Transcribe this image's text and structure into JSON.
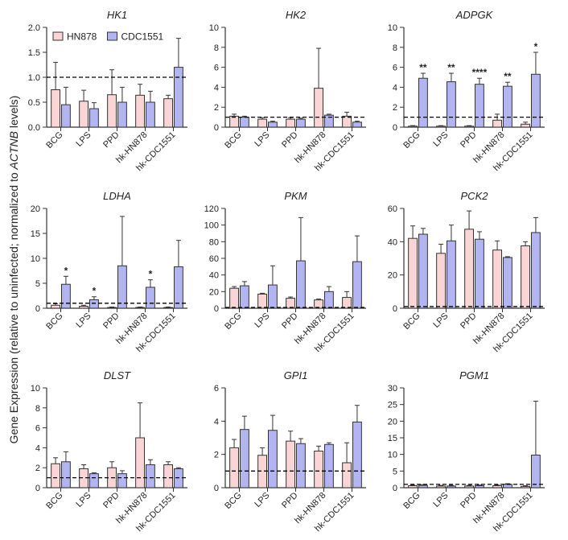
{
  "y_axis_label": "Gene Expression (relative to uninfected; normalized to ACTNB levels)",
  "y_axis_label_prefix": "Gene Expression (relative to uninfected; normalized to ",
  "y_axis_label_italic": "ACTNB",
  "y_axis_label_suffix": " levels)",
  "colors": {
    "HN878": "#f9d5d5",
    "CDC1551": "#b3b5f2",
    "edge": "#333333"
  },
  "chart_data": [
    {
      "type": "bar",
      "title": "HK1",
      "categories": [
        "BCG",
        "LPS",
        "PPD",
        "hk-HN878",
        "hk-CDC1551"
      ],
      "ylim": [
        0,
        2.0
      ],
      "yticks": [
        "0.0",
        "0.5",
        "1.0",
        "1.5",
        "2.0"
      ],
      "reference_line": 1,
      "legend": [
        "HN878",
        "CDC1551"
      ],
      "series": [
        {
          "name": "HN878",
          "values": [
            0.75,
            0.52,
            0.65,
            0.64,
            0.57
          ],
          "errors": [
            0.55,
            0.22,
            0.5,
            0.22,
            0.07
          ]
        },
        {
          "name": "CDC1551",
          "values": [
            0.45,
            0.37,
            0.5,
            0.5,
            1.2
          ],
          "errors": [
            0.35,
            0.12,
            0.3,
            0.22,
            0.58
          ]
        }
      ],
      "annotations": []
    },
    {
      "type": "bar",
      "title": "HK2",
      "categories": [
        "BCG",
        "LPS",
        "PPD",
        "hk-HN878",
        "hk-CDC1551"
      ],
      "ylim": [
        0,
        10
      ],
      "yticks": [
        "0",
        "2",
        "4",
        "6",
        "8",
        "10"
      ],
      "reference_line": 1,
      "series": [
        {
          "name": "HN878",
          "values": [
            1.1,
            0.8,
            0.8,
            3.9,
            1.1
          ],
          "errors": [
            0.2,
            0.15,
            0.15,
            4.0,
            0.4
          ]
        },
        {
          "name": "CDC1551",
          "values": [
            1.0,
            0.5,
            0.8,
            1.2,
            0.5
          ],
          "errors": [
            0.1,
            0.1,
            0.1,
            0.1,
            0.1
          ]
        }
      ],
      "annotations": []
    },
    {
      "type": "bar",
      "title": "ADPGK",
      "categories": [
        "BCG",
        "LPS",
        "PPD",
        "hk-HN878",
        "hk-CDC1551"
      ],
      "ylim": [
        0,
        10
      ],
      "yticks": [
        "0",
        "2",
        "4",
        "6",
        "8",
        "10"
      ],
      "reference_line": 1,
      "series": [
        {
          "name": "HN878",
          "values": [
            0.1,
            0.1,
            0.1,
            0.7,
            0.3
          ],
          "errors": [
            0.05,
            0.05,
            0.05,
            0.6,
            0.2
          ]
        },
        {
          "name": "CDC1551",
          "values": [
            4.9,
            4.55,
            4.3,
            4.1,
            5.3
          ],
          "errors": [
            0.5,
            0.85,
            0.6,
            0.4,
            2.2
          ]
        }
      ],
      "annotations": [
        {
          "category": "BCG",
          "series": "CDC1551",
          "label": "**"
        },
        {
          "category": "LPS",
          "series": "CDC1551",
          "label": "**"
        },
        {
          "category": "PPD",
          "series": "CDC1551",
          "label": "****"
        },
        {
          "category": "hk-HN878",
          "series": "CDC1551",
          "label": "**"
        },
        {
          "category": "hk-CDC1551",
          "series": "CDC1551",
          "label": "*"
        }
      ]
    },
    {
      "type": "bar",
      "title": "LDHA",
      "categories": [
        "BCG",
        "LPS",
        "PPD",
        "hk-HN878",
        "hk-CDC1551"
      ],
      "ylim": [
        0,
        20
      ],
      "yticks": [
        "0",
        "5",
        "10",
        "15",
        "20"
      ],
      "reference_line": 1,
      "series": [
        {
          "name": "HN878",
          "values": [
            0.6,
            0.4,
            0.15,
            0.15,
            0.15
          ],
          "errors": [
            0.3,
            0.2,
            0.1,
            0.1,
            0.1
          ]
        },
        {
          "name": "CDC1551",
          "values": [
            4.8,
            1.7,
            8.5,
            4.2,
            8.3
          ],
          "errors": [
            1.6,
            0.6,
            9.9,
            1.5,
            5.3
          ]
        }
      ],
      "annotations": [
        {
          "category": "BCG",
          "series": "CDC1551",
          "label": "*"
        },
        {
          "category": "LPS",
          "series": "CDC1551",
          "label": "*"
        },
        {
          "category": "hk-HN878",
          "series": "CDC1551",
          "label": "*"
        }
      ]
    },
    {
      "type": "bar",
      "title": "PKM",
      "categories": [
        "BCG",
        "LPS",
        "PPD",
        "hk-HN878",
        "hk-CDC1551"
      ],
      "ylim": [
        0,
        120
      ],
      "yticks": [
        "0",
        "20",
        "40",
        "60",
        "80",
        "100",
        "120"
      ],
      "reference_line": 1,
      "series": [
        {
          "name": "HN878",
          "values": [
            24,
            17,
            12,
            10,
            13
          ],
          "errors": [
            2,
            1,
            1.5,
            1,
            7
          ]
        },
        {
          "name": "CDC1551",
          "values": [
            27,
            28,
            57,
            20,
            56
          ],
          "errors": [
            5,
            23,
            52,
            6,
            31
          ]
        }
      ],
      "annotations": []
    },
    {
      "type": "bar",
      "title": "PCK2",
      "categories": [
        "BCG",
        "LPS",
        "PPD",
        "hk-HN878",
        "hk-CDC1551"
      ],
      "ylim": [
        0,
        60
      ],
      "yticks": [
        "0",
        "20",
        "40",
        "60"
      ],
      "reference_line": 1,
      "series": [
        {
          "name": "HN878",
          "values": [
            42,
            33,
            47.5,
            35,
            37.5
          ],
          "errors": [
            7.5,
            5.5,
            11,
            5.5,
            2.5
          ]
        },
        {
          "name": "CDC1551",
          "values": [
            44.5,
            40.5,
            41.5,
            30.5,
            45.5
          ],
          "errors": [
            3.5,
            9.5,
            4.5,
            0.5,
            9
          ]
        }
      ],
      "annotations": []
    },
    {
      "type": "bar",
      "title": "DLST",
      "categories": [
        "BCG",
        "LPS",
        "PPD",
        "hk-HN878",
        "hk-CDC1551"
      ],
      "ylim": [
        0,
        10
      ],
      "yticks": [
        "0",
        "2",
        "4",
        "6",
        "8",
        "10"
      ],
      "reference_line": 1,
      "series": [
        {
          "name": "HN878",
          "values": [
            2.4,
            1.9,
            2.0,
            5.0,
            2.3
          ],
          "errors": [
            0.6,
            0.4,
            0.6,
            3.5,
            0.3
          ]
        },
        {
          "name": "CDC1551",
          "values": [
            2.6,
            1.4,
            1.4,
            2.3,
            1.9
          ],
          "errors": [
            1.0,
            0.1,
            0.3,
            0.5,
            0.1
          ]
        }
      ],
      "annotations": []
    },
    {
      "type": "bar",
      "title": "GPI1",
      "categories": [
        "BCG",
        "LPS",
        "PPD",
        "hk-HN878",
        "hk-CDC1551"
      ],
      "ylim": [
        0,
        6
      ],
      "yticks": [
        "0",
        "2",
        "4",
        "6"
      ],
      "reference_line": 1,
      "series": [
        {
          "name": "HN878",
          "values": [
            2.4,
            1.95,
            2.8,
            2.2,
            1.5
          ],
          "errors": [
            0.5,
            0.45,
            0.6,
            0.3,
            1.2
          ]
        },
        {
          "name": "CDC1551",
          "values": [
            3.5,
            3.45,
            2.65,
            2.6,
            3.95
          ],
          "errors": [
            0.8,
            0.9,
            0.3,
            0.1,
            1.0
          ]
        }
      ],
      "annotations": []
    },
    {
      "type": "bar",
      "title": "PGM1",
      "categories": [
        "BCG",
        "LPS",
        "PPD",
        "hk-HN878",
        "hk-CDC1551"
      ],
      "ylim": [
        0,
        30
      ],
      "yticks": [
        "0",
        "5",
        "10",
        "15",
        "20",
        "25",
        "30"
      ],
      "reference_line": 1,
      "series": [
        {
          "name": "HN878",
          "values": [
            0.6,
            0.5,
            0.5,
            0.6,
            0.4
          ],
          "errors": [
            0.2,
            0.2,
            0.2,
            0.2,
            0.2
          ]
        },
        {
          "name": "CDC1551",
          "values": [
            0.7,
            0.5,
            0.6,
            1.0,
            9.8
          ],
          "errors": [
            0.2,
            0.2,
            0.2,
            0.2,
            16.2
          ]
        }
      ],
      "annotations": []
    }
  ]
}
